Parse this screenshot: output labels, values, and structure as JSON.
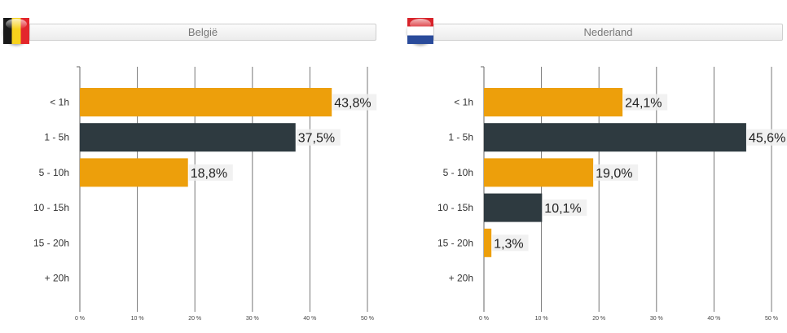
{
  "colors": {
    "orange": "#ED9F0B",
    "dark": "#2E3A40",
    "grid": "#777777",
    "label_bg": "#EEEEEE"
  },
  "panels": [
    {
      "id": "be",
      "title": "België",
      "flag": "belgium-flag-icon"
    },
    {
      "id": "nl",
      "title": "Nederland",
      "flag": "netherlands-flag-icon"
    }
  ],
  "chart_data": [
    {
      "type": "bar",
      "orientation": "horizontal",
      "title": "België",
      "categories": [
        "< 1h",
        "1 - 5h",
        "5 - 10h",
        "10 - 15h",
        "15 - 20h",
        "+ 20h"
      ],
      "values": [
        43.8,
        37.5,
        18.8,
        null,
        null,
        null
      ],
      "value_labels": [
        "43,8%",
        "37,5%",
        "18,8%",
        "",
        "",
        ""
      ],
      "xlim": [
        0,
        50
      ],
      "xticks": [
        "0 %",
        "10 %",
        "20 %",
        "30 %",
        "40 %",
        "50 %"
      ],
      "grid": true,
      "bar_colors": [
        "#ED9F0B",
        "#2E3A40",
        "#ED9F0B",
        "#2E3A40",
        "#ED9F0B",
        "#2E3A40"
      ]
    },
    {
      "type": "bar",
      "orientation": "horizontal",
      "title": "Nederland",
      "categories": [
        "< 1h",
        "1 - 5h",
        "5 - 10h",
        "10 - 15h",
        "15 - 20h",
        "+ 20h"
      ],
      "values": [
        24.1,
        45.6,
        19.0,
        10.1,
        1.3,
        null
      ],
      "value_labels": [
        "24,1%",
        "45,6%",
        "19,0%",
        "10,1%",
        "1,3%",
        ""
      ],
      "xlim": [
        0,
        50
      ],
      "xticks": [
        "0 %",
        "10 %",
        "20 %",
        "30 %",
        "40 %",
        "50 %"
      ],
      "grid": true,
      "bar_colors": [
        "#ED9F0B",
        "#2E3A40",
        "#ED9F0B",
        "#2E3A40",
        "#ED9F0B",
        "#2E3A40"
      ]
    }
  ]
}
